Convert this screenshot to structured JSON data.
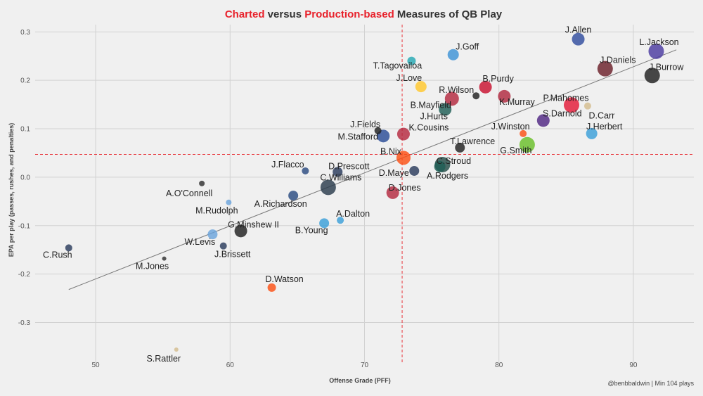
{
  "chart_data": {
    "type": "scatter",
    "title_parts": [
      {
        "text": "Charted",
        "color": "#e8202a"
      },
      {
        "text": " versus ",
        "color": "#333333"
      },
      {
        "text": "Production-based",
        "color": "#e8202a"
      },
      {
        "text": " Measures of QB Play",
        "color": "#333333"
      }
    ],
    "xlabel": "Offense Grade (PFF)",
    "ylabel": "EPA per play (passes, rushes, and penalties)",
    "caption": "@benbbaldwin | Min 104 plays",
    "xlim": [
      45.5,
      94.5
    ],
    "ylim": [
      -0.385,
      0.315
    ],
    "xticks": [
      50,
      60,
      70,
      80,
      90
    ],
    "yticks": [
      -0.3,
      -0.2,
      -0.1,
      0.0,
      0.1,
      0.2,
      0.3
    ],
    "xtick_labels": [
      "50",
      "60",
      "70",
      "80",
      "90"
    ],
    "ytick_labels": [
      "-0.3",
      "-0.2",
      "-0.1",
      "0.0",
      "0.1",
      "0.2",
      "0.3"
    ],
    "ref_x": 72.8,
    "ref_y": 0.047,
    "trend_line": {
      "x": [
        48.0,
        93.2
      ],
      "y": [
        -0.232,
        0.263
      ]
    },
    "points": [
      {
        "name": "J.Allen",
        "x": 85.9,
        "y": 0.285,
        "size": 9,
        "color": "#2f4c9e",
        "label_dx": 0,
        "label_dy": -9,
        "anchor": "middle"
      },
      {
        "name": "L.Jackson",
        "x": 91.7,
        "y": 0.26,
        "size": 11,
        "color": "#4a3aa0",
        "label_dx": 4,
        "label_dy": -9,
        "anchor": "middle"
      },
      {
        "name": "J.Goff",
        "x": 76.6,
        "y": 0.253,
        "size": 8,
        "color": "#3d93d6",
        "label_dx": 20,
        "label_dy": -7,
        "anchor": "middle"
      },
      {
        "name": "T.Tagovailoa",
        "x": 73.5,
        "y": 0.24,
        "size": 6,
        "color": "#26a8b3",
        "label_dx": -20,
        "label_dy": 11,
        "anchor": "middle"
      },
      {
        "name": "J.Daniels",
        "x": 87.9,
        "y": 0.224,
        "size": 11,
        "color": "#6a1f28",
        "label_dx": 18,
        "label_dy": -8,
        "anchor": "middle"
      },
      {
        "name": "J.Burrow",
        "x": 91.4,
        "y": 0.21,
        "size": 11,
        "color": "#202020",
        "label_dx": 20,
        "label_dy": -8,
        "anchor": "middle"
      },
      {
        "name": "J.Love",
        "x": 74.2,
        "y": 0.187,
        "size": 8,
        "color": "#ffc72c",
        "label_dx": -17,
        "label_dy": -8,
        "anchor": "middle"
      },
      {
        "name": "B.Purdy",
        "x": 79.0,
        "y": 0.186,
        "size": 9,
        "color": "#c8102e",
        "label_dx": 18,
        "label_dy": -8,
        "anchor": "middle"
      },
      {
        "name": "R.Wilson",
        "x": 78.3,
        "y": 0.168,
        "size": 5,
        "color": "#202020",
        "label_dx": -28,
        "label_dy": -4,
        "anchor": "middle"
      },
      {
        "name": "K.Murray",
        "x": 80.4,
        "y": 0.167,
        "size": 9,
        "color": "#b0283e",
        "label_dx": 18,
        "label_dy": 12,
        "anchor": "middle"
      },
      {
        "name": "B.Mayfield",
        "x": 76.5,
        "y": 0.162,
        "size": 10,
        "color": "#b3283e",
        "label_dx": -30,
        "label_dy": 13,
        "anchor": "middle"
      },
      {
        "name": "J.Hurts",
        "x": 76.0,
        "y": 0.14,
        "size": 9,
        "color": "#1f5e55",
        "label_dx": -16,
        "label_dy": 14,
        "anchor": "middle"
      },
      {
        "name": "P.Mahomes",
        "x": 85.4,
        "y": 0.149,
        "size": 11,
        "color": "#e31837",
        "label_dx": -8,
        "label_dy": -6,
        "anchor": "middle"
      },
      {
        "name": "D.Carr",
        "x": 86.6,
        "y": 0.147,
        "size": 5,
        "color": "#d3bc8d",
        "label_dx": 20,
        "label_dy": 18,
        "anchor": "middle"
      },
      {
        "name": "S.Darnold",
        "x": 83.3,
        "y": 0.117,
        "size": 9,
        "color": "#4f2683",
        "label_dx": 27,
        "label_dy": -6,
        "anchor": "middle"
      },
      {
        "name": "J.Fields",
        "x": 71.0,
        "y": 0.096,
        "size": 5,
        "color": "#202020",
        "label_dx": -18,
        "label_dy": -5,
        "anchor": "middle"
      },
      {
        "name": "M.Stafford",
        "x": 71.4,
        "y": 0.085,
        "size": 9,
        "color": "#2a4c96",
        "label_dx": -36,
        "label_dy": 5,
        "anchor": "middle"
      },
      {
        "name": "K.Cousins",
        "x": 72.9,
        "y": 0.089,
        "size": 9,
        "color": "#b5283e",
        "label_dx": 36,
        "label_dy": -5,
        "anchor": "middle"
      },
      {
        "name": "J.Winston",
        "x": 81.8,
        "y": 0.09,
        "size": 5,
        "color": "#fb4f14",
        "label_dx": -18,
        "label_dy": -6,
        "anchor": "middle"
      },
      {
        "name": "J.Herbert",
        "x": 86.9,
        "y": 0.09,
        "size": 8,
        "color": "#3a9fd8",
        "label_dx": 18,
        "label_dy": -6,
        "anchor": "middle"
      },
      {
        "name": "T.Lawrence",
        "x": 77.1,
        "y": 0.061,
        "size": 7,
        "color": "#202020",
        "label_dx": 18,
        "label_dy": -5,
        "anchor": "middle"
      },
      {
        "name": "G.Smith",
        "x": 82.1,
        "y": 0.067,
        "size": 11,
        "color": "#69be28",
        "label_dx": -16,
        "label_dy": 12,
        "anchor": "middle"
      },
      {
        "name": "B.Nix",
        "x": 72.9,
        "y": 0.04,
        "size": 10,
        "color": "#fb4f14",
        "label_dx": -18,
        "label_dy": -5,
        "anchor": "middle"
      },
      {
        "name": "C.Stroud",
        "x": 75.8,
        "y": 0.026,
        "size": 11,
        "color": "#234a45",
        "label_dx": 16,
        "label_dy": -1,
        "anchor": "middle"
      },
      {
        "name": "A.Rodgers",
        "x": 75.6,
        "y": 0.022,
        "size": 8,
        "color": "#1f5e55",
        "label_dx": 11,
        "label_dy": 17,
        "anchor": "middle"
      },
      {
        "name": "J.Flacco",
        "x": 65.6,
        "y": 0.013,
        "size": 5,
        "color": "#2b4b80",
        "label_dx": -25,
        "label_dy": -5,
        "anchor": "middle"
      },
      {
        "name": "D.Prescott",
        "x": 68.0,
        "y": 0.011,
        "size": 7,
        "color": "#2a3a5c",
        "label_dx": 16,
        "label_dy": -4,
        "anchor": "middle"
      },
      {
        "name": "D.Maye",
        "x": 73.7,
        "y": 0.013,
        "size": 7,
        "color": "#2a3a5c",
        "label_dx": -29,
        "label_dy": 7,
        "anchor": "middle"
      },
      {
        "name": "C.Williams",
        "x": 67.3,
        "y": -0.021,
        "size": 11,
        "color": "#2a3a4c",
        "label_dx": 18,
        "label_dy": -10,
        "anchor": "middle"
      },
      {
        "name": "A.O'Connell",
        "x": 57.9,
        "y": -0.013,
        "size": 4,
        "color": "#303030",
        "label_dx": -18,
        "label_dy": 18,
        "anchor": "middle"
      },
      {
        "name": "D.Jones",
        "x": 72.1,
        "y": -0.032,
        "size": 9,
        "color": "#b3283e",
        "label_dx": 17,
        "label_dy": -3,
        "anchor": "middle"
      },
      {
        "name": "A.Richardson",
        "x": 64.7,
        "y": -0.038,
        "size": 7,
        "color": "#2a4b80",
        "label_dx": -18,
        "label_dy": 16,
        "anchor": "middle"
      },
      {
        "name": "M.Rudolph",
        "x": 59.9,
        "y": -0.052,
        "size": 4,
        "color": "#6aa3dc",
        "label_dx": -17,
        "label_dy": 16,
        "anchor": "middle"
      },
      {
        "name": "A.Dalton",
        "x": 68.2,
        "y": -0.089,
        "size": 5,
        "color": "#3a9fd8",
        "label_dx": 18,
        "label_dy": -5,
        "anchor": "middle"
      },
      {
        "name": "B.Young",
        "x": 67.0,
        "y": -0.095,
        "size": 7,
        "color": "#3a9fd8",
        "label_dx": -18,
        "label_dy": 14,
        "anchor": "middle"
      },
      {
        "name": "G.Minshew II",
        "x": 60.8,
        "y": -0.111,
        "size": 9,
        "color": "#202020",
        "label_dx": 18,
        "label_dy": -5,
        "anchor": "middle"
      },
      {
        "name": "W.Levis",
        "x": 58.7,
        "y": -0.118,
        "size": 7,
        "color": "#6aa3dc",
        "label_dx": -18,
        "label_dy": 15,
        "anchor": "middle"
      },
      {
        "name": "J.Brissett",
        "x": 59.5,
        "y": -0.142,
        "size": 5,
        "color": "#2a3a5c",
        "label_dx": 13,
        "label_dy": 16,
        "anchor": "middle"
      },
      {
        "name": "C.Rush",
        "x": 48.0,
        "y": -0.146,
        "size": 5,
        "color": "#2a3a5c",
        "label_dx": -16,
        "label_dy": 14,
        "anchor": "middle"
      },
      {
        "name": "M.Jones",
        "x": 55.1,
        "y": -0.168,
        "size": 3,
        "color": "#303030",
        "label_dx": -17,
        "label_dy": 15,
        "anchor": "middle"
      },
      {
        "name": "D.Watson",
        "x": 63.1,
        "y": -0.228,
        "size": 6,
        "color": "#fb4f14",
        "label_dx": 18,
        "label_dy": -8,
        "anchor": "middle"
      },
      {
        "name": "S.Rattler",
        "x": 56.0,
        "y": -0.356,
        "size": 3,
        "color": "#d3bc8d",
        "label_dx": -18,
        "label_dy": 17,
        "anchor": "middle"
      }
    ]
  }
}
